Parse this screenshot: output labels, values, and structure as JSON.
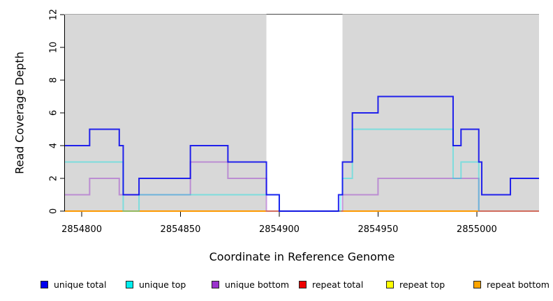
{
  "chart_data": {
    "type": "line",
    "subtype": "step-coverage-plot",
    "title": "",
    "xlabel": "Coordinate in Reference Genome",
    "ylabel": "Read Coverage Depth",
    "xlim": [
      2854791.5,
      2855031.5
    ],
    "ylim": [
      0,
      12
    ],
    "x_ticks": [
      2854800,
      2854850,
      2854900,
      2854950,
      2855000
    ],
    "y_ticks": [
      0,
      2,
      4,
      6,
      8,
      10,
      12
    ],
    "grid": false,
    "legend_position": "bottom",
    "background": {
      "plot_bg": "#ffffff",
      "shaded_color": "#d8d8d8",
      "shaded_regions": [
        {
          "x0": 2854791.5,
          "x1": 2854893.5
        },
        {
          "x0": 2854932.0,
          "x1": 2855031.5
        }
      ],
      "gap_region": {
        "x0": 2854893.5,
        "x1": 2854932.0
      },
      "top_border_color": "#a6a6a6",
      "gap_top_border_color": "#5f5f5f",
      "axis_color": "#000000"
    },
    "series": [
      {
        "name": "repeat total",
        "color": "#ee0000",
        "line_alpha": 1,
        "steps": [
          [
            2854791.5,
            0
          ]
        ],
        "end": 2855031.5
      },
      {
        "name": "repeat top",
        "color": "#ffff00",
        "line_alpha": 1,
        "steps": [
          [
            2854791.5,
            0
          ]
        ],
        "end": 2855031.5
      },
      {
        "name": "repeat bottom",
        "color": "#ff9a00",
        "line_alpha": 1,
        "steps": [
          [
            2854791.5,
            0
          ]
        ],
        "end": 2855031.5
      },
      {
        "name": "unique bottom",
        "color": "#9a32cd",
        "line_alpha": 0.45,
        "steps": [
          [
            2854791.5,
            1
          ],
          [
            2854804,
            2
          ],
          [
            2854819,
            1
          ],
          [
            2854855,
            3
          ],
          [
            2854874,
            2
          ],
          [
            2854893.5,
            0
          ],
          [
            2854932,
            1
          ],
          [
            2854950,
            2
          ],
          [
            2855001,
            0
          ]
        ],
        "end": 2855031.5
      },
      {
        "name": "unique top",
        "color": "#00e5e5",
        "line_alpha": 0.42,
        "steps": [
          [
            2854791.5,
            3
          ],
          [
            2854821,
            0
          ],
          [
            2854829,
            1
          ],
          [
            2854900,
            0
          ],
          [
            2854931,
            1
          ],
          [
            2854932,
            2
          ],
          [
            2854937,
            5
          ],
          [
            2854988,
            2
          ],
          [
            2854992,
            3
          ],
          [
            2855001,
            0
          ]
        ],
        "end": 2855001
      },
      {
        "name": "unique total",
        "color": "#0000ee",
        "line_alpha": 0.85,
        "steps": [
          [
            2854791.5,
            4
          ],
          [
            2854804,
            5
          ],
          [
            2854819,
            4
          ],
          [
            2854821,
            1
          ],
          [
            2854829,
            2
          ],
          [
            2854855,
            4
          ],
          [
            2854874,
            3
          ],
          [
            2854893.5,
            1
          ],
          [
            2854900,
            0
          ],
          [
            2854930,
            1
          ],
          [
            2854932,
            3
          ],
          [
            2854937,
            6
          ],
          [
            2854950,
            7
          ],
          [
            2854988,
            4
          ],
          [
            2854992,
            5
          ],
          [
            2855001,
            3
          ],
          [
            2855002.5,
            1
          ],
          [
            2855017,
            2
          ]
        ],
        "end": 2855031.5
      }
    ],
    "legend": {
      "items": [
        {
          "label": "unique total",
          "color": "#0000ee"
        },
        {
          "label": "unique top",
          "color": "#00eeee"
        },
        {
          "label": "unique bottom",
          "color": "#9a32cd"
        },
        {
          "label": "repeat total",
          "color": "#ee0000"
        },
        {
          "label": "repeat top",
          "color": "#ffff00"
        },
        {
          "label": "repeat bottom",
          "color": "#ffa500"
        }
      ]
    }
  }
}
